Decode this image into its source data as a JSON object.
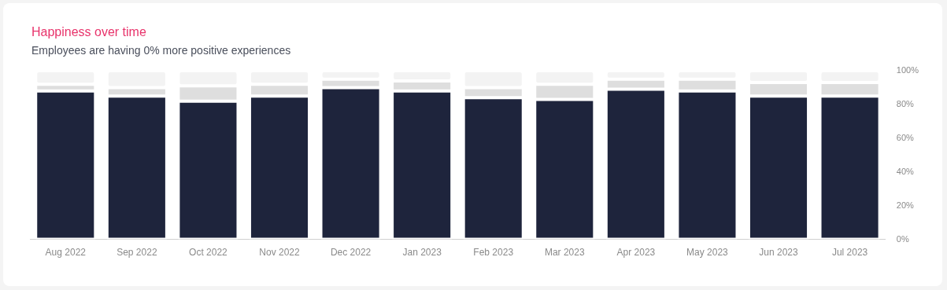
{
  "chart_data": {
    "type": "bar",
    "title": "Happiness over time",
    "subtitle": "Employees are having 0% more positive experiences",
    "categories": [
      "Aug 2022",
      "Sep 2022",
      "Oct 2022",
      "Nov 2022",
      "Dec 2022",
      "Jan 2023",
      "Feb 2023",
      "Mar 2023",
      "Apr 2023",
      "May 2023",
      "Jun 2023",
      "Jul 2023"
    ],
    "series": [
      {
        "color": "#1e243c",
        "values": [
          88,
          85,
          82,
          85,
          90,
          88,
          84,
          83,
          89,
          88,
          85,
          85
        ]
      },
      {
        "color": "#dedede",
        "values": [
          4,
          5,
          9,
          7,
          5,
          6,
          6,
          9,
          6,
          7,
          8,
          8
        ]
      },
      {
        "color": "#f3f3f3",
        "values": [
          8,
          10,
          9,
          8,
          5,
          6,
          10,
          8,
          5,
          5,
          7,
          7
        ]
      }
    ],
    "stacked": true,
    "grid": false,
    "ylim": [
      0,
      100
    ],
    "yticks": [
      {
        "value": 0,
        "label": "0%"
      },
      {
        "value": 20,
        "label": "20%"
      },
      {
        "value": 40,
        "label": "40%"
      },
      {
        "value": 60,
        "label": "60%"
      },
      {
        "value": 80,
        "label": "80%"
      },
      {
        "value": 100,
        "label": "100%"
      }
    ]
  }
}
